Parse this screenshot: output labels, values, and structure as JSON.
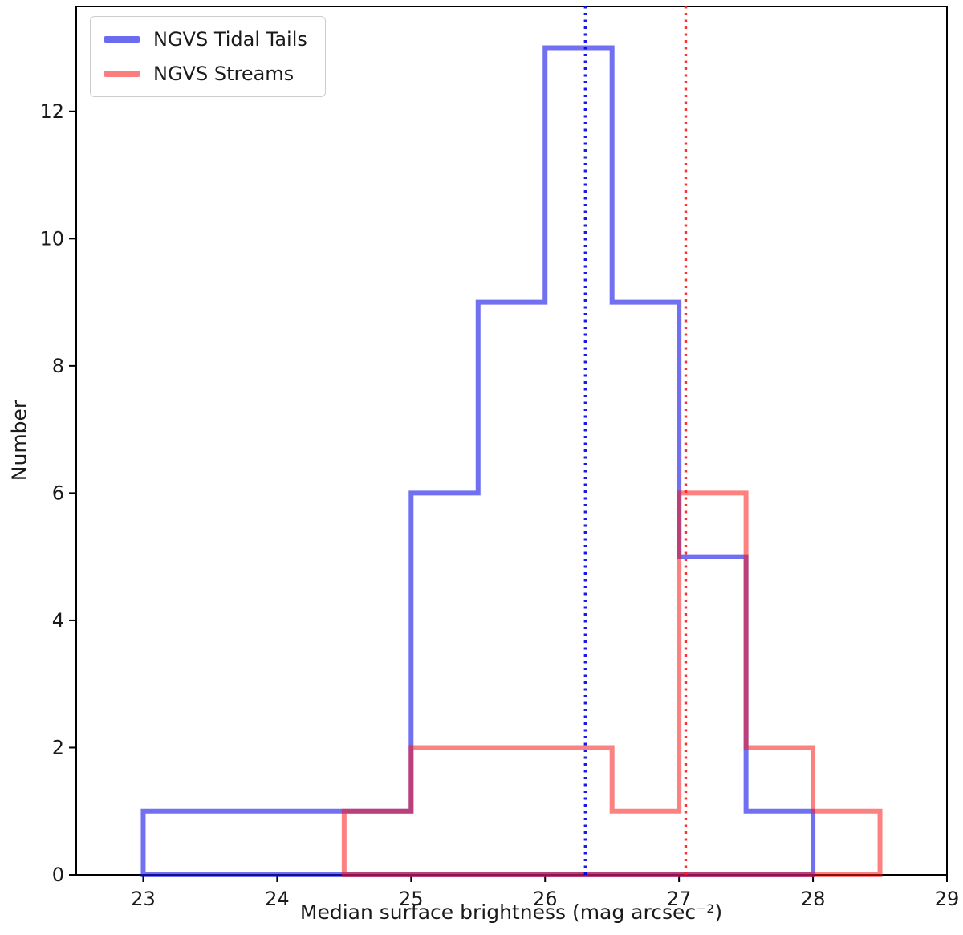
{
  "figure": {
    "background": "#ffffff",
    "axes_color": "#000000",
    "text_color": "#1a1a1a"
  },
  "legend": {
    "items": [
      {
        "label": "NGVS Tidal Tails",
        "color": "#6b6bef"
      },
      {
        "label": "NGVS Streams",
        "color": "#fb7d7d"
      }
    ]
  },
  "chart_data": {
    "type": "bar",
    "subtype": "step_histogram",
    "title": "",
    "xlabel": "Median surface brightness (mag arcsec⁻²)",
    "ylabel": "Number",
    "xlim": [
      22.5,
      29
    ],
    "ylim": [
      0,
      13.65
    ],
    "xticks": [
      23,
      24,
      25,
      26,
      27,
      28,
      29
    ],
    "yticks": [
      0,
      2,
      4,
      6,
      8,
      10,
      12
    ],
    "grid": false,
    "legend_position": "upper left",
    "bin_width": 0.5,
    "series": [
      {
        "name": "NGVS Tidal Tails",
        "bin_start": 23.0,
        "counts": [
          1,
          1,
          1,
          1,
          6,
          9,
          13,
          9,
          5,
          1
        ],
        "stroke": "rgba(25,25,230,0.62)"
      },
      {
        "name": "NGVS Streams",
        "bin_start": 24.5,
        "counts": [
          1,
          2,
          2,
          2,
          1,
          6,
          2,
          1
        ],
        "stroke": "rgba(250,25,25,0.55)"
      }
    ],
    "vlines": [
      {
        "x": 26.3,
        "color": "rgba(0,0,235,0.9)",
        "style": "dotted"
      },
      {
        "x": 27.05,
        "color": "rgba(255,25,25,0.9)",
        "style": "dotted"
      }
    ]
  }
}
